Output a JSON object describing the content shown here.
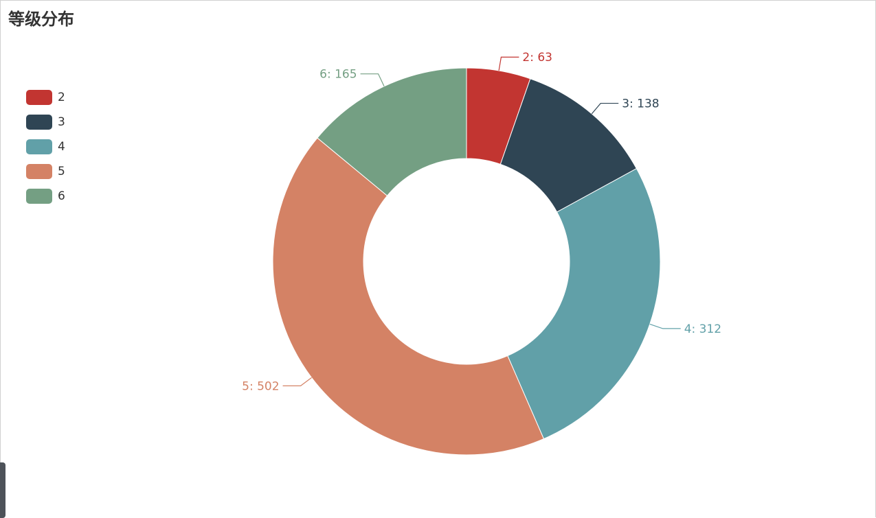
{
  "title": "等级分布",
  "chart_data": {
    "type": "pie",
    "variant": "donut",
    "title": "等级分布",
    "categories": [
      "2",
      "3",
      "4",
      "5",
      "6"
    ],
    "values": [
      63,
      138,
      312,
      502,
      165
    ],
    "colors": [
      "#c23531",
      "#2f4554",
      "#61a0a8",
      "#d48265",
      "#749f83"
    ],
    "data_labels": [
      "2: 63",
      "3: 138",
      "4: 312",
      "5: 502",
      "6: 165"
    ],
    "legend_placement": "left"
  },
  "legend": {
    "items": [
      {
        "label": "2",
        "color": "#c23531"
      },
      {
        "label": "3",
        "color": "#2f4554"
      },
      {
        "label": "4",
        "color": "#61a0a8"
      },
      {
        "label": "5",
        "color": "#d48265"
      },
      {
        "label": "6",
        "color": "#749f83"
      }
    ]
  }
}
